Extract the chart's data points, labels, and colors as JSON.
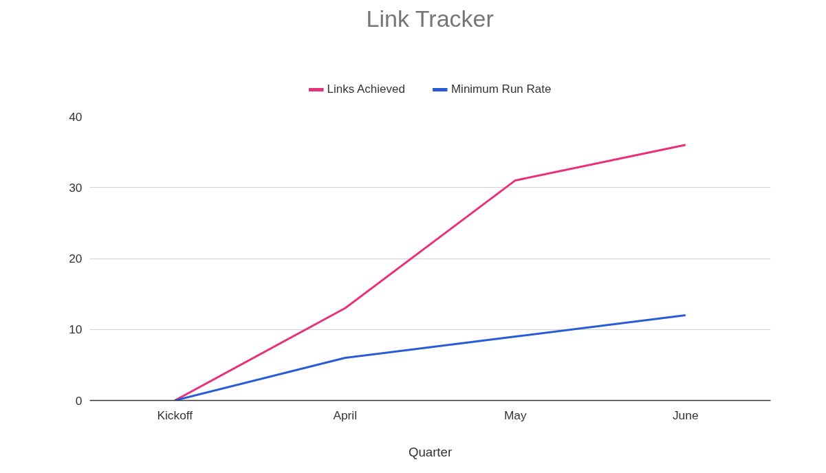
{
  "chart_data": {
    "type": "line",
    "title": "Link Tracker",
    "xlabel": "Quarter",
    "categories": [
      "Kickoff",
      "April",
      "May",
      "June"
    ],
    "series": [
      {
        "name": "Links Achieved",
        "color": "#e8317a",
        "values": [
          0,
          13,
          31,
          36
        ]
      },
      {
        "name": "Minimum Run Rate",
        "color": "#2a5bd7",
        "values": [
          0,
          6,
          9,
          12
        ]
      }
    ],
    "ylim": [
      0,
      40
    ],
    "yticks": [
      0,
      10,
      20,
      30,
      40
    ],
    "grid": "y",
    "legend": "top",
    "marker": "none",
    "line_style": "solid"
  }
}
